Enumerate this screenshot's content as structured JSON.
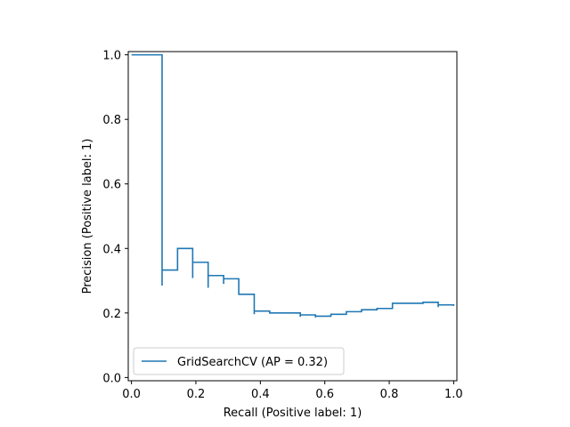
{
  "chart_data": {
    "type": "line",
    "xlabel": "Recall (Positive label: 1)",
    "ylabel": "Precision (Positive label: 1)",
    "xlim": [
      -0.01,
      1.01
    ],
    "ylim": [
      -0.01,
      1.01
    ],
    "xticks": [
      "0.0",
      "0.2",
      "0.4",
      "0.6",
      "0.8",
      "1.0"
    ],
    "yticks": [
      "0.0",
      "0.2",
      "0.4",
      "0.6",
      "0.8",
      "1.0"
    ],
    "grid": false,
    "legend_position": "lower-left",
    "series": [
      {
        "name": "GridSearchCV (AP = 0.32)",
        "color": "#1f77b4",
        "step": "post",
        "points": [
          [
            0.0,
            1.0
          ],
          [
            0.095,
            1.0
          ],
          [
            0.095,
            0.285
          ],
          [
            0.095,
            0.333
          ],
          [
            0.143,
            0.333
          ],
          [
            0.143,
            0.4
          ],
          [
            0.19,
            0.4
          ],
          [
            0.19,
            0.308
          ],
          [
            0.19,
            0.357
          ],
          [
            0.238,
            0.357
          ],
          [
            0.238,
            0.278
          ],
          [
            0.238,
            0.316
          ],
          [
            0.286,
            0.316
          ],
          [
            0.286,
            0.29
          ],
          [
            0.286,
            0.306
          ],
          [
            0.333,
            0.306
          ],
          [
            0.333,
            0.258
          ],
          [
            0.381,
            0.258
          ],
          [
            0.381,
            0.196
          ],
          [
            0.381,
            0.206
          ],
          [
            0.429,
            0.206
          ],
          [
            0.429,
            0.2
          ],
          [
            0.524,
            0.2
          ],
          [
            0.524,
            0.188
          ],
          [
            0.524,
            0.194
          ],
          [
            0.571,
            0.194
          ],
          [
            0.571,
            0.186
          ],
          [
            0.571,
            0.19
          ],
          [
            0.619,
            0.19
          ],
          [
            0.619,
            0.196
          ],
          [
            0.667,
            0.196
          ],
          [
            0.667,
            0.204
          ],
          [
            0.714,
            0.204
          ],
          [
            0.714,
            0.21
          ],
          [
            0.762,
            0.21
          ],
          [
            0.762,
            0.214
          ],
          [
            0.81,
            0.214
          ],
          [
            0.81,
            0.23
          ],
          [
            0.905,
            0.23
          ],
          [
            0.905,
            0.233
          ],
          [
            0.952,
            0.233
          ],
          [
            0.952,
            0.218
          ],
          [
            0.952,
            0.225
          ],
          [
            1.0,
            0.225
          ],
          [
            1.0,
            0.222
          ]
        ]
      }
    ]
  }
}
